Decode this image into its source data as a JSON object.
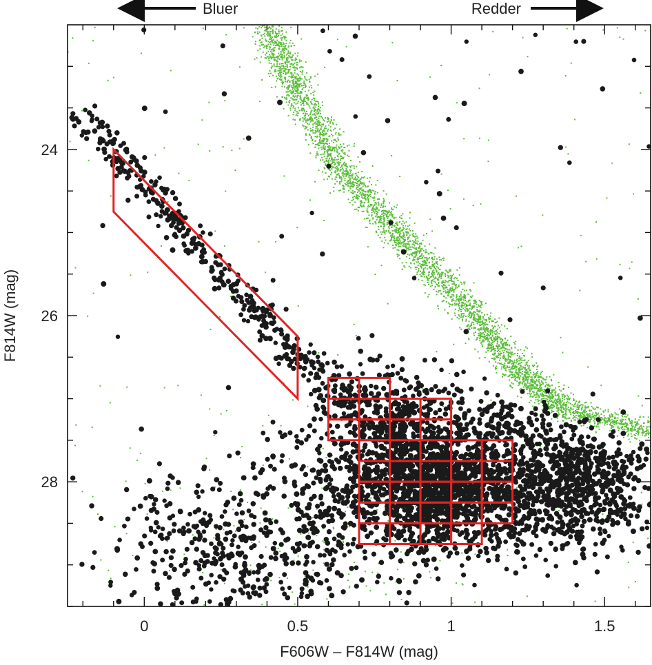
{
  "chart_data": {
    "type": "scatter",
    "xlabel": "F606W – F814W (mag)",
    "ylabel": "F814W (mag)",
    "xlim": [
      -0.25,
      1.65
    ],
    "ylim": [
      29.5,
      22.5
    ],
    "y_inverted": true,
    "x_ticks_major": [
      0,
      0.5,
      1,
      1.5
    ],
    "x_tick_labels": [
      "0",
      "0.5",
      "1",
      "1.5"
    ],
    "y_ticks_major": [
      24,
      26,
      28
    ],
    "y_tick_labels": [
      "24",
      "26",
      "28"
    ],
    "y_ticks_minor": [
      23,
      23.5,
      24.5,
      25,
      25.5,
      26.5,
      27,
      27.5,
      28.5,
      29,
      29.5
    ],
    "grid": false,
    "legend": "none",
    "annotations": [
      {
        "text": "Bluer",
        "arrow": "left"
      },
      {
        "text": "Redder",
        "arrow": "right"
      }
    ],
    "colors": {
      "field_points": "#1a1a1a",
      "model_points": "#5bbd3a",
      "selection_boxes": "#e02424"
    },
    "series": [
      {
        "role": "observed stars (black points)",
        "clouds": [
          {
            "kind": "band",
            "x0": -0.2,
            "y0": 23.6,
            "x1": 0.52,
            "y1": 26.6,
            "sigma_x": 0.025,
            "sigma_y": 0.09,
            "n": 320
          },
          {
            "kind": "band",
            "x0": 0.5,
            "y0": 26.5,
            "x1": 0.72,
            "y1": 27.1,
            "sigma_x": 0.03,
            "sigma_y": 0.12,
            "n": 90
          },
          {
            "kind": "blob",
            "cx": 0.98,
            "cy": 28.05,
            "sx": 0.16,
            "sy": 0.38,
            "n": 1700
          },
          {
            "kind": "blob",
            "cx": 0.82,
            "cy": 27.3,
            "sx": 0.12,
            "sy": 0.35,
            "n": 420
          },
          {
            "kind": "blob",
            "cx": 1.42,
            "cy": 28.1,
            "sx": 0.13,
            "sy": 0.35,
            "n": 650
          },
          {
            "kind": "band",
            "x0": 1.1,
            "y0": 27.1,
            "x1": 1.6,
            "y1": 27.9,
            "sigma_x": 0.05,
            "sigma_y": 0.15,
            "n": 160
          },
          {
            "kind": "blob",
            "cx": 0.3,
            "cy": 28.8,
            "sx": 0.22,
            "sy": 0.45,
            "n": 420
          },
          {
            "kind": "blob",
            "cx": 0.6,
            "cy": 28.1,
            "sx": 0.18,
            "sy": 0.6,
            "n": 180
          },
          {
            "kind": "uniform",
            "xmin": -0.25,
            "xmax": 1.65,
            "ymin": 22.5,
            "ymax": 26.5,
            "n": 55
          }
        ]
      },
      {
        "role": "model red giant branch (green points)",
        "clouds": [
          {
            "kind": "curve",
            "points": [
              [
                0.4,
                22.5
              ],
              [
                0.5,
                23.3
              ],
              [
                0.65,
                24.3
              ],
              [
                0.85,
                25.1
              ],
              [
                1.05,
                25.9
              ],
              [
                1.2,
                26.6
              ],
              [
                1.35,
                27.1
              ],
              [
                1.65,
                27.4
              ]
            ],
            "sigma_x": 0.03,
            "sigma_y": 0.06,
            "n": 4200
          },
          {
            "kind": "uniform",
            "xmin": -0.25,
            "xmax": 1.65,
            "ymin": 22.5,
            "ymax": 29.5,
            "n": 240
          },
          {
            "kind": "blob",
            "cx": 0.55,
            "cy": 28.6,
            "sx": 0.25,
            "sy": 0.6,
            "n": 160
          }
        ]
      }
    ],
    "selection_regions": [
      {
        "shape": "parallelogram",
        "vertices": [
          [
            -0.1,
            24.0
          ],
          [
            0.5,
            26.25
          ],
          [
            0.5,
            27.0
          ],
          [
            -0.1,
            24.75
          ]
        ]
      },
      {
        "shape": "grid",
        "x_min": 0.6,
        "x_max": 0.8,
        "x_step": 0.1,
        "y_min": 26.75,
        "y_max": 27.5,
        "y_step": 0.25
      },
      {
        "shape": "grid",
        "x_min": 0.7,
        "x_max": 1.0,
        "x_step": 0.1,
        "y_min": 27.0,
        "y_max": 27.5,
        "y_step": 0.25
      },
      {
        "shape": "grid",
        "x_min": 0.7,
        "x_max": 1.2,
        "x_step": 0.1,
        "y_min": 27.5,
        "y_max": 28.5,
        "y_step": 0.25
      },
      {
        "shape": "grid",
        "x_min": 0.7,
        "x_max": 1.1,
        "x_step": 0.1,
        "y_min": 28.5,
        "y_max": 28.75,
        "y_step": 0.25
      }
    ]
  }
}
